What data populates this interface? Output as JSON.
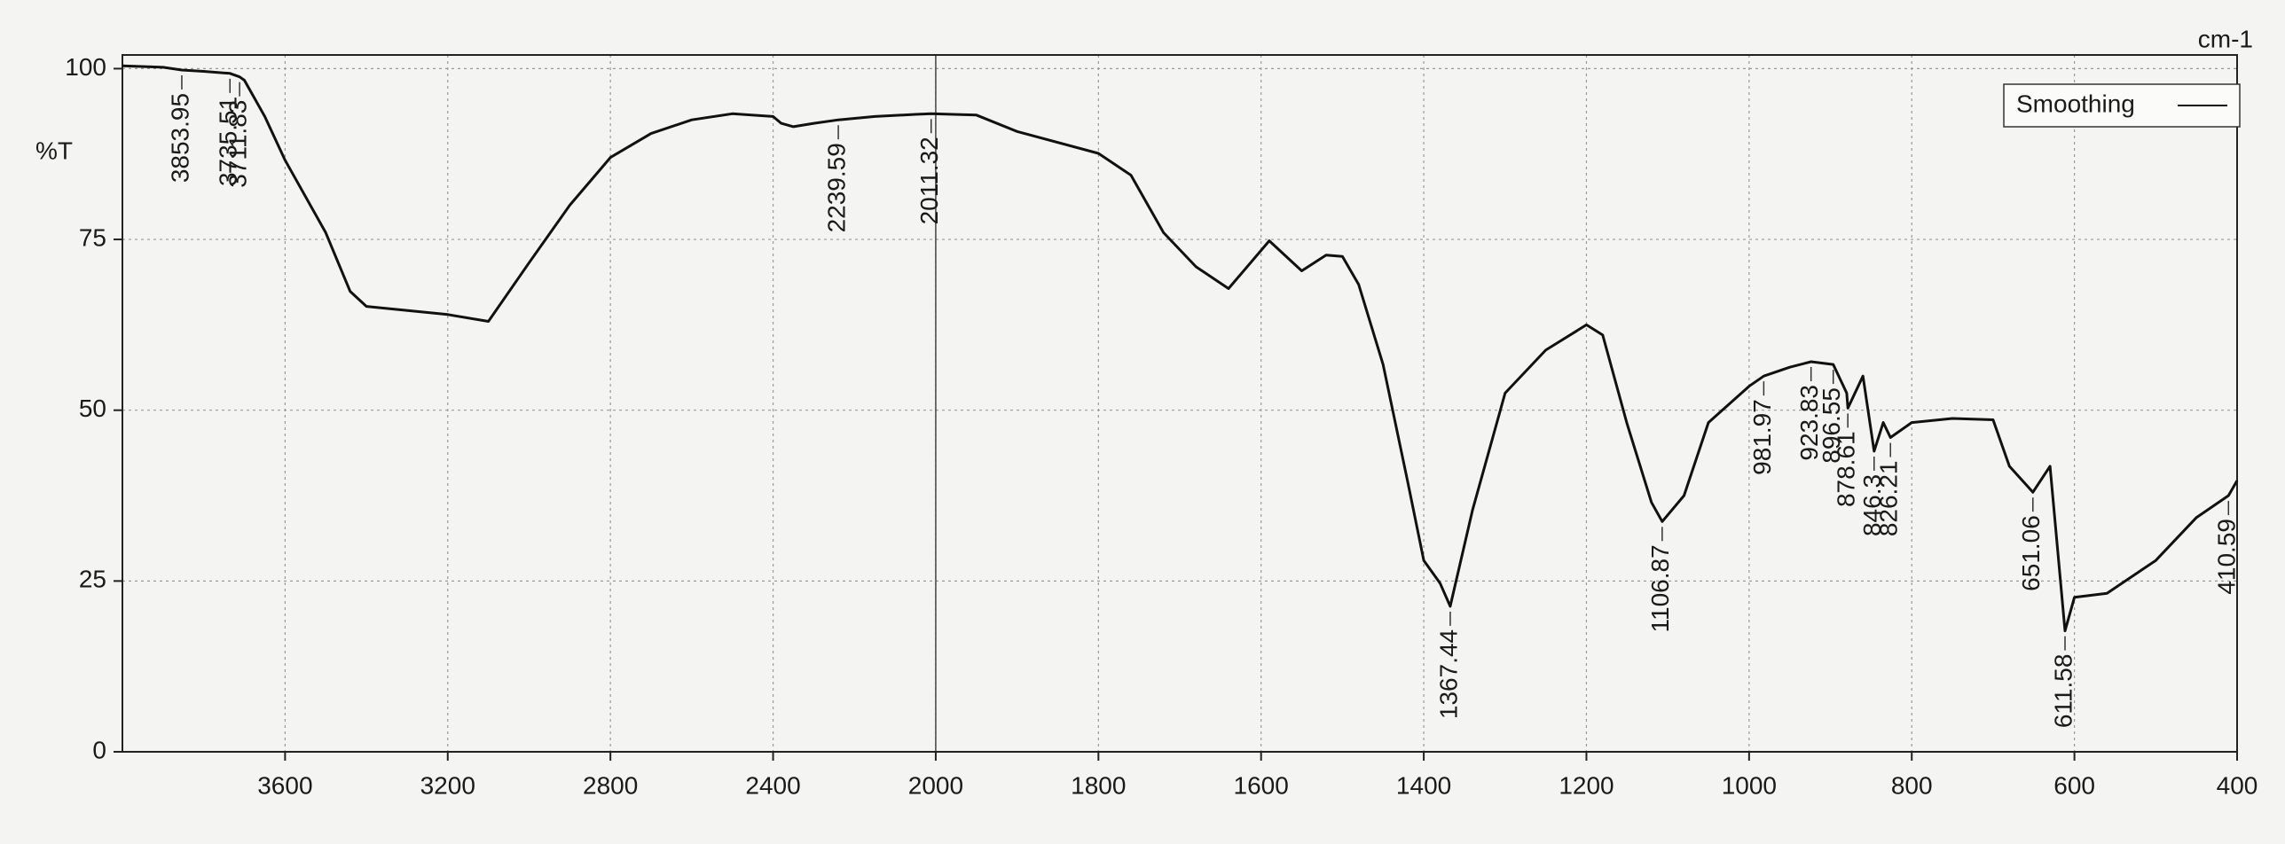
{
  "chart_data": {
    "type": "line",
    "y_label": "%T",
    "x_label": "cm-1",
    "xlim": [
      4000,
      400
    ],
    "x_break": 2000,
    "ylim": [
      0,
      102
    ],
    "xticks": [
      3600,
      3200,
      2800,
      2400,
      2000,
      1800,
      1600,
      1400,
      1200,
      1000,
      800,
      600,
      400
    ],
    "yticks": [
      0,
      25,
      50,
      75,
      100
    ],
    "grid": true,
    "legend": "upper right",
    "series": [
      {
        "name": "Smoothing",
        "color": "#111111",
        "x": [
          4000,
          3900,
          3853.95,
          3800,
          3735.51,
          3711.83,
          3700,
          3650,
          3600,
          3500,
          3440,
          3400,
          3200,
          3100,
          3000,
          2900,
          2800,
          2700,
          2600,
          2500,
          2400,
          2380,
          2350,
          2300,
          2239.59,
          2150,
          2050,
          2011.32,
          1950,
          1900,
          1800,
          1760,
          1720,
          1680,
          1640,
          1590,
          1550,
          1520,
          1500,
          1480,
          1450,
          1420,
          1400,
          1380,
          1367.44,
          1340,
          1300,
          1250,
          1200,
          1180,
          1150,
          1120,
          1106.87,
          1080,
          1050,
          1000,
          981.97,
          950,
          923.83,
          896.55,
          880,
          878.61,
          860,
          846.3,
          835,
          826.21,
          800,
          750,
          700,
          680,
          651.06,
          630,
          611.58,
          600,
          560,
          500,
          450,
          410.59,
          400
        ],
        "values": [
          100.4,
          100.2,
          99.8,
          99.6,
          99.3,
          98.8,
          98.3,
          93,
          86.6,
          76,
          67.4,
          65.2,
          64,
          63,
          71.6,
          80,
          87,
          90.5,
          92.5,
          93.4,
          93,
          92,
          91.5,
          92,
          92.5,
          93,
          93.3,
          93.4,
          93.2,
          90.8,
          87.6,
          84.4,
          76,
          71,
          67.8,
          74.8,
          70.4,
          72.7,
          72.5,
          68.4,
          56.7,
          39.7,
          28,
          24.7,
          21.3,
          35.4,
          52.5,
          58.8,
          62.5,
          61,
          48,
          36.5,
          33.7,
          37.5,
          48.2,
          53.5,
          55,
          56.3,
          57.1,
          56.7,
          52.5,
          50.3,
          55,
          44,
          48.2,
          46,
          48.2,
          48.8,
          48.6,
          41.8,
          38,
          41.8,
          17.7,
          22.6,
          23.2,
          28,
          34.3,
          37.5,
          39.7
        ]
      }
    ],
    "peaks": [
      3853.95,
      3735.51,
      3711.83,
      2239.59,
      2011.32,
      1367.44,
      1106.87,
      981.97,
      923.83,
      896.55,
      878.61,
      846.3,
      826.21,
      651.06,
      611.58,
      410.59
    ]
  }
}
